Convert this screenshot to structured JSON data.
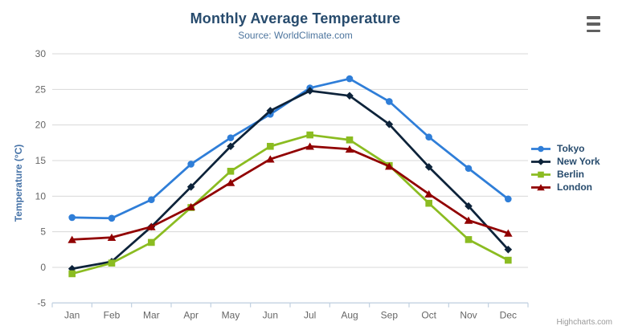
{
  "chart_data": {
    "type": "line",
    "title": "Monthly Average Temperature",
    "subtitle": "Source: WorldClimate.com",
    "xlabel": "",
    "ylabel": "Temperature (°C)",
    "categories": [
      "Jan",
      "Feb",
      "Mar",
      "Apr",
      "May",
      "Jun",
      "Jul",
      "Aug",
      "Sep",
      "Oct",
      "Nov",
      "Dec"
    ],
    "ylim": [
      -5,
      30
    ],
    "ytick_step": 5,
    "grid": true,
    "legend_position": "right",
    "series": [
      {
        "name": "Tokyo",
        "color": "#2f7ed8",
        "marker": "circle",
        "values": [
          7.0,
          6.9,
          9.5,
          14.5,
          18.2,
          21.5,
          25.2,
          26.5,
          23.3,
          18.3,
          13.9,
          9.6
        ]
      },
      {
        "name": "New York",
        "color": "#0d233a",
        "marker": "diamond",
        "values": [
          -0.2,
          0.8,
          5.7,
          11.3,
          17.0,
          22.0,
          24.8,
          24.1,
          20.1,
          14.1,
          8.6,
          2.5
        ]
      },
      {
        "name": "Berlin",
        "color": "#8bbc21",
        "marker": "square",
        "values": [
          -0.9,
          0.6,
          3.5,
          8.4,
          13.5,
          17.0,
          18.6,
          17.9,
          14.3,
          9.0,
          3.9,
          1.0
        ]
      },
      {
        "name": "London",
        "color": "#910000",
        "marker": "triangle",
        "values": [
          3.9,
          4.2,
          5.7,
          8.5,
          11.9,
          15.2,
          17.0,
          16.6,
          14.2,
          10.3,
          6.6,
          4.8
        ]
      }
    ]
  },
  "chart_meta": {
    "credits_label": "Highcharts.com",
    "context_menu_icon": "hamburger-icon"
  },
  "theme": {
    "title_color": "#274b6d",
    "subtitle_color": "#4d759e",
    "y_axis_title_color": "#4572a7",
    "axis_label_color": "#666666",
    "gridline_color": "#d8d8d8",
    "axis_line_color": "#c0d0e0",
    "legend_text_color": "#274b6d",
    "credit_color": "#999999",
    "menu_icon_color": "#606060",
    "background": "#ffffff"
  }
}
